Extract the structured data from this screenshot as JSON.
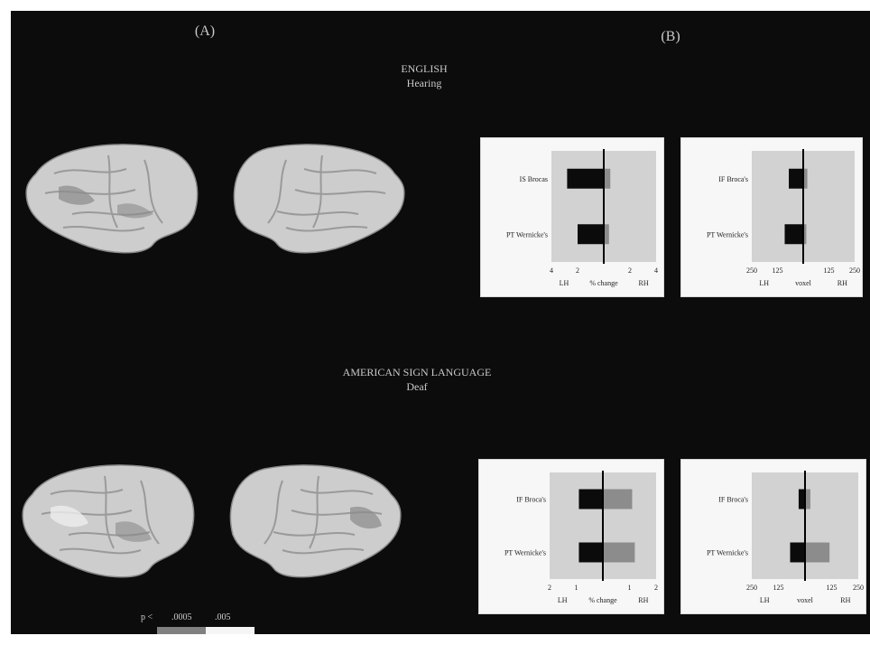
{
  "panels": {
    "a": "(A)",
    "b": "(B)"
  },
  "conditions": [
    {
      "language": "ENGLISH",
      "group": "Hearing"
    },
    {
      "language": "AMERICAN SIGN LANGUAGE",
      "group": "Deaf"
    }
  ],
  "legend": {
    "p_label": "p <",
    "values": [
      ".0005",
      ".005"
    ],
    "colors": [
      "#808080",
      "#f5f5f5"
    ]
  },
  "charts": [
    {
      "rows": [
        "IS Brocas",
        "PT Wernicke's"
      ],
      "ticks": [
        "4",
        "2",
        "",
        "2",
        "4"
      ],
      "xlabel": [
        "LH",
        "% change",
        "RH"
      ],
      "values": [
        [
          -2.8,
          0.5
        ],
        [
          -2.0,
          0.4
        ]
      ],
      "range": [
        -4,
        4
      ]
    },
    {
      "rows": [
        "IF Broca's",
        "PT Wernicke's"
      ],
      "ticks": [
        "250",
        "125",
        "",
        "125",
        "250"
      ],
      "xlabel": [
        "LH",
        "voxel",
        "RH"
      ],
      "values": [
        [
          -70,
          20
        ],
        [
          -90,
          15
        ]
      ],
      "range": [
        -250,
        250
      ]
    },
    {
      "rows": [
        "IF Broca's",
        "PT Wernicke's"
      ],
      "ticks": [
        "2",
        "1",
        "",
        "1",
        "2"
      ],
      "xlabel": [
        "LH",
        "% change",
        "RH"
      ],
      "values": [
        [
          -0.9,
          1.1
        ],
        [
          -0.9,
          1.2
        ]
      ],
      "range": [
        -2,
        2
      ]
    },
    {
      "rows": [
        "IF Broca's",
        "PT Wernicke's"
      ],
      "ticks": [
        "250",
        "125",
        "",
        "125",
        "250"
      ],
      "xlabel": [
        "LH",
        "voxel",
        "RH"
      ],
      "values": [
        [
          -30,
          25
        ],
        [
          -70,
          115
        ]
      ],
      "range": [
        -250,
        250
      ]
    }
  ]
}
